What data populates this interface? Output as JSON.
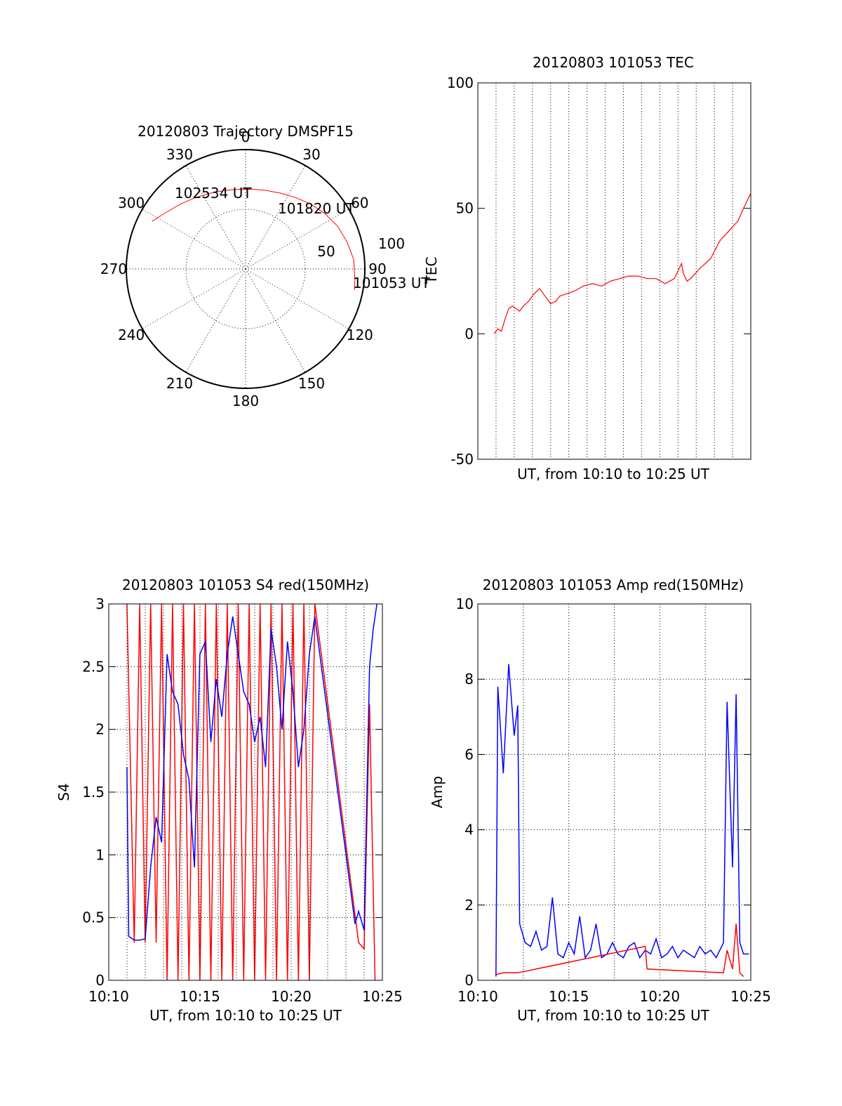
{
  "charts": {
    "polar": {
      "title": "20120803 Trajectory DMSPF15",
      "az_labels": [
        "0",
        "30",
        "60",
        "90",
        "120",
        "150",
        "180",
        "210",
        "240",
        "270",
        "300",
        "330"
      ],
      "ring_labels": [
        "50",
        "100"
      ],
      "time_labels": [
        "102534 UT",
        "101820 UT",
        "101053 UT"
      ]
    },
    "tec": {
      "title": "20120803 101053 TEC",
      "ylabel": "TEC",
      "xlabel": "UT, from 10:10 to 10:25 UT",
      "yticks": [
        "100",
        "50",
        "0",
        "-50"
      ]
    },
    "s4": {
      "title": "20120803 101053 S4 red(150MHz)",
      "ylabel": "S4",
      "xlabel": "UT, from 10:10 to 10:25 UT",
      "yticks": [
        "3",
        "2.5",
        "2",
        "1.5",
        "1",
        "0.5",
        "0"
      ],
      "xticks": [
        "10:10",
        "10:15",
        "10:20",
        "10:25"
      ]
    },
    "amp": {
      "title": "20120803 101053 Amp red(150MHz)",
      "ylabel": "Amp",
      "xlabel": "UT, from 10:10 to 10:25 UT",
      "yticks": [
        "10",
        "8",
        "6",
        "4",
        "2",
        "0"
      ],
      "xticks": [
        "10:10",
        "10:15",
        "10:20",
        "10:25"
      ]
    }
  },
  "colors": {
    "red": "#ff0000",
    "blue": "#0000ff",
    "axis": "#000000",
    "grid": "#000000"
  },
  "chart_data": [
    {
      "type": "line",
      "title": "20120803 Trajectory DMSPF15",
      "coordinate_system": "polar (azimuth deg, zenith distance)",
      "r_range": [
        0,
        100
      ],
      "series": [
        {
          "color": "#ff0000",
          "azimuth": [
            297,
            305,
            315,
            325,
            335,
            345,
            355,
            5,
            15,
            25,
            35,
            45,
            55,
            65,
            75,
            85,
            95,
            101
          ],
          "r": [
            88,
            82,
            77,
            73,
            70,
            68,
            67,
            67,
            68,
            70,
            73,
            77,
            81,
            85,
            88,
            91,
            92,
            93
          ]
        }
      ],
      "annotations": [
        "102534 UT",
        "101820 UT",
        "101053 UT"
      ]
    },
    {
      "type": "line",
      "title": "20120803 101053 TEC",
      "xlabel": "UT, from 10:10 to 10:25 UT",
      "ylabel": "TEC",
      "xlim": [
        10.1667,
        10.4167
      ],
      "ylim": [
        -50,
        100
      ],
      "grid": true,
      "series": [
        {
          "color": "#ff0000",
          "x": [
            10.1817,
            10.185,
            10.1883,
            10.1917,
            10.195,
            10.1983,
            10.2017,
            10.205,
            10.2083,
            10.2133,
            10.2183,
            10.2233,
            10.2283,
            10.2333,
            10.2383,
            10.2417,
            10.2483,
            10.255,
            10.2633,
            10.2717,
            10.28,
            10.2883,
            10.2967,
            10.305,
            10.3133,
            10.3217,
            10.33,
            10.3383,
            10.3467,
            10.3533,
            10.355,
            10.3583,
            10.3617,
            10.37,
            10.38,
            10.3883,
            10.3967,
            10.405,
            10.41,
            10.4167
          ],
          "y": [
            0,
            2,
            1,
            6,
            10,
            11,
            10,
            9,
            11,
            13,
            16,
            18,
            15,
            12,
            13,
            15,
            16,
            17,
            19,
            20,
            19,
            21,
            22,
            23,
            23,
            22,
            22,
            20,
            22,
            28,
            24,
            21,
            22,
            26,
            30,
            37,
            41,
            45,
            50,
            56
          ]
        }
      ]
    },
    {
      "type": "line",
      "title": "20120803 101053 S4 red(150MHz)",
      "xlabel": "UT, from 10:10 to 10:25 UT",
      "ylabel": "S4",
      "xlim": [
        10.1667,
        10.4167
      ],
      "ylim": [
        0,
        3
      ],
      "grid": true,
      "series": [
        {
          "color": "#ff0000",
          "description_points": "rapid oscillation 0–3",
          "x": [
            10.1833,
            10.19,
            10.195,
            10.2,
            10.205,
            10.21,
            10.215,
            10.22,
            10.225,
            10.23,
            10.235,
            10.24,
            10.245,
            10.25,
            10.255,
            10.26,
            10.265,
            10.27,
            10.275,
            10.28,
            10.285,
            10.29,
            10.295,
            10.3,
            10.305,
            10.31,
            10.315,
            10.32,
            10.325,
            10.33,
            10.335,
            10.34,
            10.345,
            10.35,
            10.355,
            10.395,
            10.4,
            10.405,
            10.41
          ],
          "y": [
            3,
            0.3,
            3,
            0.3,
            3,
            0.3,
            3,
            0,
            3,
            0,
            3,
            0,
            3,
            0,
            3,
            0,
            3,
            0,
            3,
            0,
            3,
            0,
            3,
            0,
            3,
            0,
            3,
            0,
            3,
            0,
            3,
            0,
            3,
            0,
            3,
            0.3,
            0.25,
            2.2,
            0
          ]
        },
        {
          "color": "#0000ff",
          "x": [
            10.1833,
            10.185,
            10.19,
            10.195,
            10.2,
            10.205,
            10.21,
            10.215,
            10.22,
            10.225,
            10.23,
            10.235,
            10.24,
            10.245,
            10.25,
            10.255,
            10.26,
            10.265,
            10.27,
            10.275,
            10.28,
            10.285,
            10.29,
            10.295,
            10.3,
            10.305,
            10.31,
            10.315,
            10.32,
            10.325,
            10.33,
            10.335,
            10.34,
            10.345,
            10.35,
            10.355,
            10.3917,
            10.395,
            10.4,
            10.405,
            10.4083,
            10.4117
          ],
          "y": [
            1.7,
            0.35,
            0.32,
            0.32,
            0.33,
            0.9,
            1.3,
            1.1,
            2.6,
            2.3,
            2.2,
            1.8,
            1.6,
            0.9,
            2.6,
            2.7,
            1.9,
            2.4,
            2.1,
            2.6,
            2.9,
            2.6,
            2.3,
            2.2,
            1.9,
            2.1,
            1.7,
            2.8,
            2.5,
            2.0,
            2.7,
            2.3,
            1.7,
            2.0,
            2.6,
            2.9,
            0.45,
            0.55,
            0.4,
            2.5,
            2.8,
            3.0
          ]
        }
      ]
    },
    {
      "type": "line",
      "title": "20120803 101053 Amp red(150MHz)",
      "xlabel": "UT, from 10:10 to 10:25 UT",
      "ylabel": "Amp",
      "xlim": [
        10.1667,
        10.4167
      ],
      "ylim": [
        0,
        10
      ],
      "grid": true,
      "series": [
        {
          "color": "#0000ff",
          "x": [
            10.1833,
            10.185,
            10.19,
            10.195,
            10.2,
            10.2033,
            10.205,
            10.21,
            10.215,
            10.22,
            10.225,
            10.23,
            10.235,
            10.24,
            10.245,
            10.25,
            10.255,
            10.26,
            10.265,
            10.27,
            10.275,
            10.28,
            10.285,
            10.29,
            10.295,
            10.3,
            10.305,
            10.31,
            10.315,
            10.32,
            10.325,
            10.33,
            10.335,
            10.34,
            10.345,
            10.35,
            10.355,
            10.36,
            10.365,
            10.37,
            10.375,
            10.38,
            10.385,
            10.39,
            10.3917,
            10.395,
            10.4,
            10.4033,
            10.4067,
            10.41,
            10.415
          ],
          "y": [
            0.1,
            7.8,
            5.5,
            8.4,
            6.5,
            7.3,
            1.5,
            1.0,
            0.9,
            1.3,
            0.8,
            0.9,
            2.2,
            0.7,
            0.6,
            1.0,
            0.7,
            1.7,
            0.6,
            0.8,
            1.5,
            0.6,
            0.7,
            1.0,
            0.7,
            0.6,
            0.9,
            1.0,
            0.6,
            0.8,
            0.7,
            1.1,
            0.6,
            0.7,
            0.9,
            0.6,
            0.8,
            0.7,
            0.6,
            0.9,
            0.7,
            0.8,
            0.6,
            0.9,
            1.0,
            7.4,
            3.0,
            7.6,
            1.0,
            0.7,
            0.7
          ]
        },
        {
          "color": "#ff0000",
          "x": [
            10.1833,
            10.19,
            10.195,
            10.2,
            10.2033,
            10.32,
            10.3217,
            10.3917,
            10.395,
            10.4,
            10.4033,
            10.4067,
            10.41
          ],
          "y": [
            0.15,
            0.2,
            0.2,
            0.2,
            0.2,
            0.9,
            0.3,
            0.2,
            0.8,
            0.3,
            1.5,
            0.2,
            0.1
          ]
        }
      ]
    }
  ]
}
